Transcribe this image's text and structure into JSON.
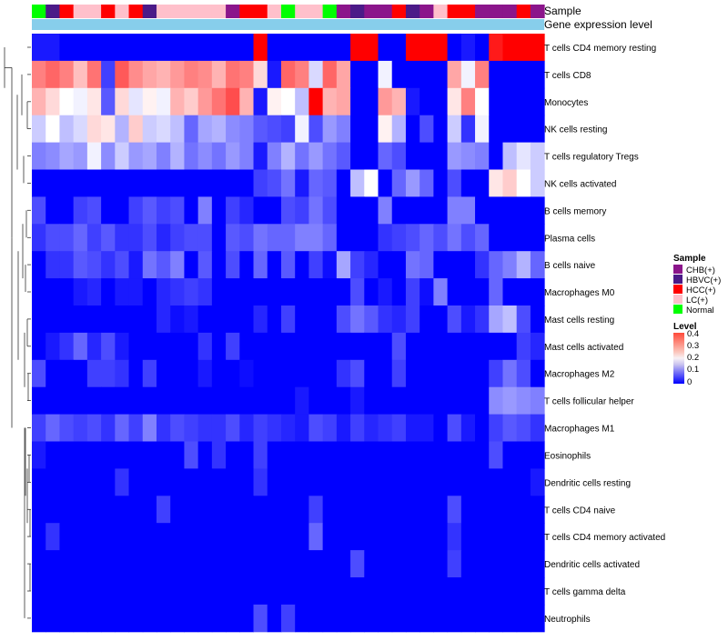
{
  "chart_data": {
    "type": "heatmap",
    "annotation_tracks": [
      "Sample",
      "Gene expression level"
    ],
    "rows": [
      "T cells CD4 memory resting",
      "T cells CD8",
      "Monocytes",
      "NK cells resting",
      "T cells regulatory  Tregs",
      "NK cells activated",
      "B cells memory",
      "Plasma cells",
      "B cells naive",
      "Macrophages M0",
      "Mast cells resting",
      "Mast cells activated",
      "Macrophages M2",
      "T cells follicular helper",
      "Macrophages M1",
      "Eosinophils",
      "Dendritic cells resting",
      "T cells CD4 naive",
      "T cells CD4 memory activated",
      "Dendritic cells activated",
      "T cells gamma delta",
      "Neutrophils"
    ],
    "sample_groups": [
      "Normal",
      "HBVC(+)",
      "HCC(+)",
      "LC(+)",
      "LC(+)",
      "HCC(+)",
      "LC(+)",
      "HCC(+)",
      "HBVC(+)",
      "LC(+)",
      "LC(+)",
      "LC(+)",
      "LC(+)",
      "LC(+)",
      "CHB(+)",
      "HCC(+)",
      "HCC(+)",
      "LC(+)",
      "Normal",
      "LC(+)",
      "LC(+)",
      "Normal",
      "CHB(+)",
      "HBVC(+)",
      "CHB(+)",
      "CHB(+)",
      "HCC(+)",
      "HBVC(+)",
      "CHB(+)",
      "LC(+)",
      "HCC(+)",
      "HCC(+)",
      "CHB(+)",
      "CHB(+)",
      "CHB(+)",
      "HCC(+)",
      "CHB(+)"
    ],
    "expression_level_track": "#87ceeb",
    "values": [
      [
        0.02,
        0.02,
        0.0,
        0.0,
        0.0,
        0.0,
        0.0,
        0.0,
        0.0,
        0.0,
        0.0,
        0.0,
        0.0,
        0.0,
        0.0,
        0.0,
        0.4,
        0.0,
        0.0,
        0.0,
        0.0,
        0.0,
        0.0,
        0.4,
        0.4,
        0.0,
        0.0,
        0.4,
        0.4,
        0.4,
        0.0,
        0.02,
        0.0,
        0.38,
        0.4,
        0.4,
        0.4
      ],
      [
        0.3,
        0.32,
        0.3,
        0.25,
        0.31,
        0.05,
        0.33,
        0.29,
        0.27,
        0.26,
        0.28,
        0.3,
        0.29,
        0.26,
        0.31,
        0.3,
        0.23,
        0.02,
        0.32,
        0.3,
        0.17,
        0.32,
        0.27,
        0.0,
        0.0,
        0.19,
        0.0,
        0.0,
        0.0,
        0.0,
        0.27,
        0.19,
        0.3,
        0.0,
        0.0,
        0.0,
        0.0
      ],
      [
        0.26,
        0.23,
        0.2,
        0.19,
        0.22,
        0.07,
        0.23,
        0.18,
        0.21,
        0.19,
        0.26,
        0.24,
        0.28,
        0.31,
        0.34,
        0.26,
        0.02,
        0.21,
        0.2,
        0.15,
        0.4,
        0.26,
        0.27,
        0.0,
        0.0,
        0.28,
        0.26,
        0.02,
        0.0,
        0.0,
        0.22,
        0.3,
        0.2,
        0.0,
        0.0,
        0.0,
        0.0
      ],
      [
        0.16,
        0.2,
        0.15,
        0.17,
        0.23,
        0.22,
        0.14,
        0.24,
        0.16,
        0.17,
        0.15,
        0.08,
        0.13,
        0.14,
        0.11,
        0.1,
        0.07,
        0.06,
        0.05,
        0.19,
        0.06,
        0.12,
        0.1,
        0.0,
        0.0,
        0.21,
        0.14,
        0.0,
        0.06,
        0.0,
        0.16,
        0.04,
        0.19,
        0.0,
        0.0,
        0.0,
        0.0
      ],
      [
        0.1,
        0.11,
        0.13,
        0.12,
        0.19,
        0.11,
        0.16,
        0.12,
        0.13,
        0.1,
        0.14,
        0.09,
        0.11,
        0.09,
        0.12,
        0.1,
        0.02,
        0.1,
        0.14,
        0.09,
        0.12,
        0.09,
        0.07,
        0.0,
        0.0,
        0.08,
        0.06,
        0.0,
        0.0,
        0.0,
        0.12,
        0.11,
        0.1,
        0.0,
        0.15,
        0.18,
        0.16
      ],
      [
        0.0,
        0.0,
        0.0,
        0.0,
        0.0,
        0.0,
        0.0,
        0.0,
        0.0,
        0.0,
        0.0,
        0.0,
        0.0,
        0.0,
        0.0,
        0.0,
        0.05,
        0.06,
        0.09,
        0.02,
        0.08,
        0.07,
        0.0,
        0.15,
        0.2,
        0.0,
        0.08,
        0.12,
        0.08,
        0.0,
        0.06,
        0.0,
        0.0,
        0.22,
        0.24,
        0.2,
        0.16
      ],
      [
        0.06,
        0.0,
        0.0,
        0.05,
        0.06,
        0.0,
        0.0,
        0.05,
        0.07,
        0.05,
        0.06,
        0.0,
        0.1,
        0.0,
        0.05,
        0.03,
        0.0,
        0.0,
        0.06,
        0.05,
        0.09,
        0.06,
        0.0,
        0.0,
        0.0,
        0.1,
        0.0,
        0.0,
        0.0,
        0.0,
        0.1,
        0.1,
        0.0,
        0.0,
        0.0,
        0.0,
        0.0
      ],
      [
        0.04,
        0.06,
        0.06,
        0.08,
        0.05,
        0.07,
        0.04,
        0.04,
        0.06,
        0.03,
        0.05,
        0.06,
        0.06,
        0.0,
        0.07,
        0.06,
        0.09,
        0.08,
        0.08,
        0.1,
        0.1,
        0.08,
        0.0,
        0.0,
        0.0,
        0.04,
        0.05,
        0.06,
        0.08,
        0.06,
        0.09,
        0.06,
        0.08,
        0.0,
        0.0,
        0.0,
        0.0
      ],
      [
        0.0,
        0.04,
        0.04,
        0.07,
        0.06,
        0.04,
        0.06,
        0.02,
        0.09,
        0.07,
        0.1,
        0.0,
        0.07,
        0.0,
        0.06,
        0.0,
        0.08,
        0.0,
        0.07,
        0.0,
        0.05,
        0.01,
        0.13,
        0.05,
        0.03,
        0.0,
        0.0,
        0.09,
        0.08,
        0.0,
        0.0,
        0.0,
        0.04,
        0.08,
        0.1,
        0.14,
        0.08
      ],
      [
        0.0,
        0.0,
        0.0,
        0.02,
        0.03,
        0.0,
        0.02,
        0.02,
        0.0,
        0.03,
        0.04,
        0.05,
        0.04,
        0.0,
        0.0,
        0.0,
        0.0,
        0.0,
        0.0,
        0.0,
        0.0,
        0.0,
        0.0,
        0.06,
        0.0,
        0.02,
        0.0,
        0.05,
        0.01,
        0.1,
        0.0,
        0.0,
        0.0,
        0.08,
        0.0,
        0.0,
        0.0
      ],
      [
        0.0,
        0.0,
        0.0,
        0.0,
        0.0,
        0.0,
        0.0,
        0.0,
        0.0,
        0.03,
        0.01,
        0.02,
        0.0,
        0.0,
        0.0,
        0.0,
        0.03,
        0.0,
        0.05,
        0.0,
        0.0,
        0.0,
        0.06,
        0.09,
        0.07,
        0.04,
        0.03,
        0.05,
        0.0,
        0.0,
        0.06,
        0.02,
        0.04,
        0.13,
        0.15,
        0.06,
        0.0
      ],
      [
        0.0,
        0.02,
        0.04,
        0.08,
        0.03,
        0.06,
        0.02,
        0.0,
        0.0,
        0.0,
        0.0,
        0.0,
        0.04,
        0.0,
        0.05,
        0.0,
        0.0,
        0.0,
        0.0,
        0.0,
        0.0,
        0.0,
        0.0,
        0.0,
        0.0,
        0.0,
        0.06,
        0.0,
        0.0,
        0.0,
        0.0,
        0.0,
        0.0,
        0.0,
        0.0,
        0.05,
        0.03
      ],
      [
        0.06,
        0.0,
        0.0,
        0.0,
        0.05,
        0.05,
        0.04,
        0.0,
        0.05,
        0.0,
        0.0,
        0.0,
        0.02,
        0.0,
        0.0,
        0.01,
        0.0,
        0.0,
        0.0,
        0.0,
        0.0,
        0.0,
        0.04,
        0.06,
        0.0,
        0.0,
        0.05,
        0.0,
        0.0,
        0.0,
        0.0,
        0.0,
        0.0,
        0.05,
        0.09,
        0.06,
        0.0
      ],
      [
        0.0,
        0.0,
        0.0,
        0.0,
        0.0,
        0.0,
        0.0,
        0.0,
        0.0,
        0.0,
        0.0,
        0.0,
        0.0,
        0.0,
        0.0,
        0.0,
        0.0,
        0.0,
        0.0,
        0.02,
        0.0,
        0.0,
        0.0,
        0.02,
        0.0,
        0.0,
        0.0,
        0.0,
        0.0,
        0.0,
        0.0,
        0.0,
        0.0,
        0.11,
        0.12,
        0.11,
        0.1
      ],
      [
        0.05,
        0.08,
        0.06,
        0.05,
        0.06,
        0.04,
        0.08,
        0.05,
        0.1,
        0.04,
        0.06,
        0.05,
        0.04,
        0.04,
        0.06,
        0.03,
        0.05,
        0.04,
        0.03,
        0.02,
        0.06,
        0.05,
        0.02,
        0.05,
        0.03,
        0.04,
        0.05,
        0.02,
        0.02,
        0.0,
        0.06,
        0.02,
        0.0,
        0.05,
        0.07,
        0.06,
        0.04
      ],
      [
        0.02,
        0.0,
        0.0,
        0.0,
        0.0,
        0.0,
        0.0,
        0.0,
        0.0,
        0.0,
        0.0,
        0.06,
        0.0,
        0.04,
        0.0,
        0.0,
        0.05,
        0.0,
        0.0,
        0.0,
        0.0,
        0.0,
        0.0,
        0.0,
        0.0,
        0.0,
        0.0,
        0.0,
        0.0,
        0.0,
        0.0,
        0.0,
        0.0,
        0.06,
        0.0,
        0.0,
        0.0
      ],
      [
        0.0,
        0.0,
        0.0,
        0.0,
        0.0,
        0.0,
        0.04,
        0.0,
        0.0,
        0.0,
        0.0,
        0.0,
        0.0,
        0.0,
        0.0,
        0.0,
        0.04,
        0.0,
        0.0,
        0.0,
        0.0,
        0.0,
        0.0,
        0.0,
        0.0,
        0.0,
        0.0,
        0.0,
        0.0,
        0.0,
        0.0,
        0.0,
        0.0,
        0.0,
        0.0,
        0.0,
        0.02
      ],
      [
        0.0,
        0.0,
        0.0,
        0.0,
        0.0,
        0.0,
        0.0,
        0.0,
        0.0,
        0.05,
        0.0,
        0.0,
        0.0,
        0.0,
        0.0,
        0.0,
        0.0,
        0.0,
        0.0,
        0.0,
        0.05,
        0.0,
        0.0,
        0.0,
        0.0,
        0.0,
        0.0,
        0.0,
        0.0,
        0.0,
        0.06,
        0.0,
        0.0,
        0.0,
        0.0,
        0.0,
        0.0
      ],
      [
        0.0,
        0.04,
        0.0,
        0.0,
        0.0,
        0.0,
        0.0,
        0.0,
        0.0,
        0.0,
        0.0,
        0.0,
        0.0,
        0.0,
        0.0,
        0.0,
        0.0,
        0.0,
        0.0,
        0.0,
        0.08,
        0.0,
        0.0,
        0.0,
        0.0,
        0.0,
        0.0,
        0.0,
        0.0,
        0.0,
        0.04,
        0.0,
        0.0,
        0.0,
        0.0,
        0.0,
        0.0
      ],
      [
        0.0,
        0.0,
        0.0,
        0.0,
        0.0,
        0.0,
        0.0,
        0.0,
        0.0,
        0.0,
        0.0,
        0.0,
        0.0,
        0.0,
        0.0,
        0.0,
        0.0,
        0.0,
        0.0,
        0.0,
        0.0,
        0.0,
        0.0,
        0.06,
        0.0,
        0.0,
        0.0,
        0.0,
        0.0,
        0.0,
        0.05,
        0.0,
        0.0,
        0.0,
        0.0,
        0.0,
        0.0
      ],
      [
        0.0,
        0.0,
        0.0,
        0.0,
        0.0,
        0.0,
        0.0,
        0.0,
        0.0,
        0.0,
        0.0,
        0.0,
        0.0,
        0.0,
        0.0,
        0.0,
        0.0,
        0.0,
        0.0,
        0.0,
        0.0,
        0.0,
        0.0,
        0.0,
        0.0,
        0.0,
        0.0,
        0.0,
        0.0,
        0.0,
        0.0,
        0.0,
        0.0,
        0.0,
        0.0,
        0.0,
        0.0
      ],
      [
        0.0,
        0.0,
        0.0,
        0.0,
        0.0,
        0.0,
        0.0,
        0.0,
        0.0,
        0.0,
        0.0,
        0.0,
        0.0,
        0.0,
        0.0,
        0.0,
        0.06,
        0.0,
        0.05,
        0.0,
        0.0,
        0.0,
        0.0,
        0.0,
        0.0,
        0.0,
        0.0,
        0.0,
        0.0,
        0.0,
        0.0,
        0.0,
        0.0,
        0.0,
        0.0,
        0.0,
        0.0
      ]
    ],
    "legend": {
      "sample_title": "Sample",
      "sample_entries": [
        {
          "label": "CHB(+)",
          "color": "#8b158b"
        },
        {
          "label": "HBVC(+)",
          "color": "#4b1a88"
        },
        {
          "label": "HCC(+)",
          "color": "#ff0000"
        },
        {
          "label": "LC(+)",
          "color": "#ffc0cb"
        },
        {
          "label": "Normal",
          "color": "#00ff00"
        }
      ],
      "level_title": "Level",
      "level_ticks": [
        "0.4",
        "0.3",
        "0.2",
        "0.1",
        "0"
      ],
      "level_range": [
        0,
        0.4
      ],
      "colors": {
        "low": "#0000ff",
        "mid": "#ffffff",
        "high": "#ff0000"
      }
    }
  }
}
